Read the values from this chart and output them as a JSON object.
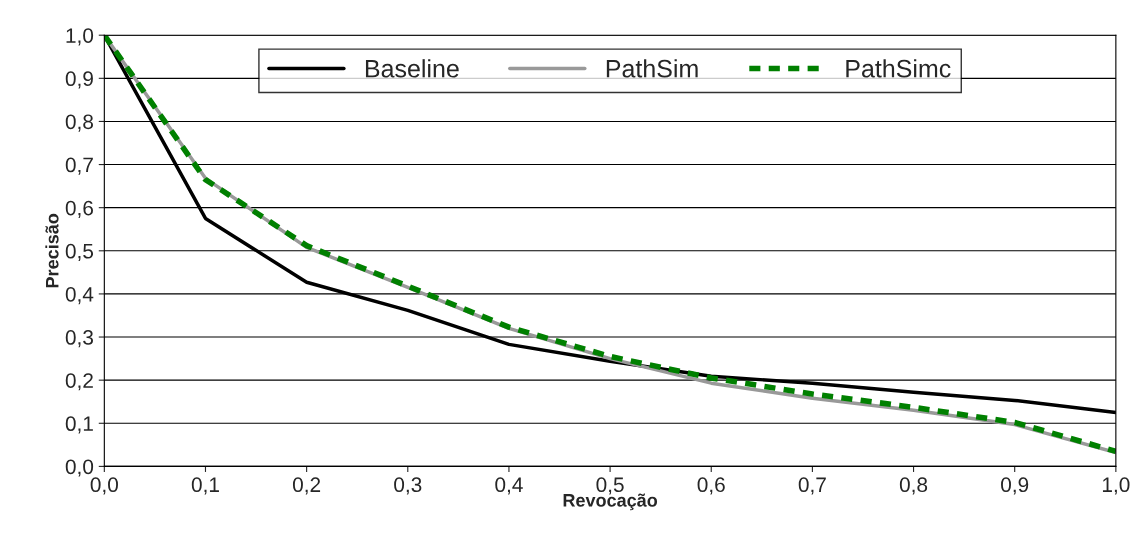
{
  "chart_data": {
    "type": "line",
    "xlabel": "Revocação",
    "ylabel": "Precisão",
    "x": [
      0.0,
      0.1,
      0.2,
      0.3,
      0.4,
      0.5,
      0.6,
      0.7,
      0.8,
      0.9,
      1.0
    ],
    "series": [
      {
        "name": "Baseline",
        "color": "#000000",
        "line_style": "solid",
        "values": [
          1.0,
          0.575,
          0.427,
          0.362,
          0.283,
          0.244,
          0.209,
          0.193,
          0.172,
          0.153,
          0.125
        ]
      },
      {
        "name": "PathSim",
        "color": "#999999",
        "line_style": "solid",
        "values": [
          1.0,
          0.668,
          0.508,
          0.415,
          0.32,
          0.25,
          0.193,
          0.158,
          0.13,
          0.097,
          0.032
        ]
      },
      {
        "name": "PathSimc",
        "color": "#008000",
        "line_style": "dashed",
        "values": [
          1.0,
          0.665,
          0.512,
          0.418,
          0.323,
          0.255,
          0.205,
          0.168,
          0.137,
          0.102,
          0.035
        ]
      }
    ],
    "xlim": [
      0.0,
      1.0
    ],
    "xticks": [
      {
        "value": 0.0,
        "label": "0,0"
      },
      {
        "value": 0.1,
        "label": "0,1"
      },
      {
        "value": 0.2,
        "label": "0,2"
      },
      {
        "value": 0.3,
        "label": "0,3"
      },
      {
        "value": 0.4,
        "label": "0,4"
      },
      {
        "value": 0.5,
        "label": "0,5"
      },
      {
        "value": 0.6,
        "label": "0,6"
      },
      {
        "value": 0.7,
        "label": "0,7"
      },
      {
        "value": 0.8,
        "label": "0,8"
      },
      {
        "value": 0.9,
        "label": "0,9"
      },
      {
        "value": 1.0,
        "label": "1,0"
      }
    ],
    "ylim": [
      0.0,
      1.0
    ],
    "yticks": [
      {
        "value": 0.0,
        "label": "0,0"
      },
      {
        "value": 0.1,
        "label": "0,1"
      },
      {
        "value": 0.2,
        "label": "0,2"
      },
      {
        "value": 0.3,
        "label": "0,3"
      },
      {
        "value": 0.4,
        "label": "0,4"
      },
      {
        "value": 0.5,
        "label": "0,5"
      },
      {
        "value": 0.6,
        "label": "0,6"
      },
      {
        "value": 0.7,
        "label": "0,7"
      },
      {
        "value": 0.8,
        "label": "0,8"
      },
      {
        "value": 0.9,
        "label": "0,9"
      },
      {
        "value": 1.0,
        "label": "1,0"
      }
    ],
    "grid": "y",
    "legend": "top",
    "marker": "none"
  }
}
